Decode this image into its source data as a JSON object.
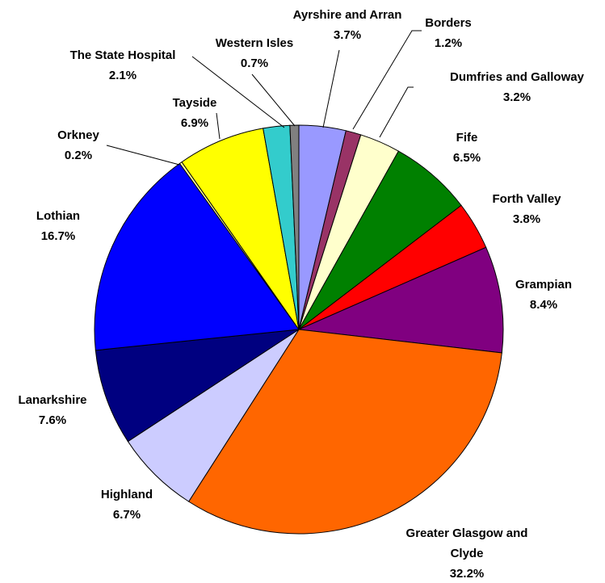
{
  "chart_data": {
    "type": "pie",
    "categories": [
      "Ayrshire and Arran",
      "Borders",
      "Dumfries and Galloway",
      "Fife",
      "Forth Valley",
      "Grampian",
      "Greater Glasgow and Clyde",
      "Highland",
      "Lanarkshire",
      "Lothian",
      "Orkney",
      "Tayside",
      "The State Hospital",
      "Western Isles"
    ],
    "values": [
      3.7,
      1.2,
      3.2,
      6.5,
      3.8,
      8.4,
      32.2,
      6.7,
      7.6,
      16.7,
      0.2,
      6.9,
      2.1,
      0.7
    ],
    "value_labels": [
      "3.7%",
      "1.2%",
      "3.2%",
      "6.5%",
      "3.8%",
      "8.4%",
      "32.2%",
      "6.7%",
      "7.6%",
      "16.7%",
      "0.2%",
      "6.9%",
      "2.1%",
      "0.7%"
    ],
    "colors": [
      "#9999ff",
      "#993366",
      "#ffffcc",
      "#008000",
      "#ff0000",
      "#800080",
      "#ff6600",
      "#ccccff",
      "#000080",
      "#0000ff",
      "#ffff99",
      "#ffff00",
      "#33cccc",
      "#808080"
    ]
  }
}
